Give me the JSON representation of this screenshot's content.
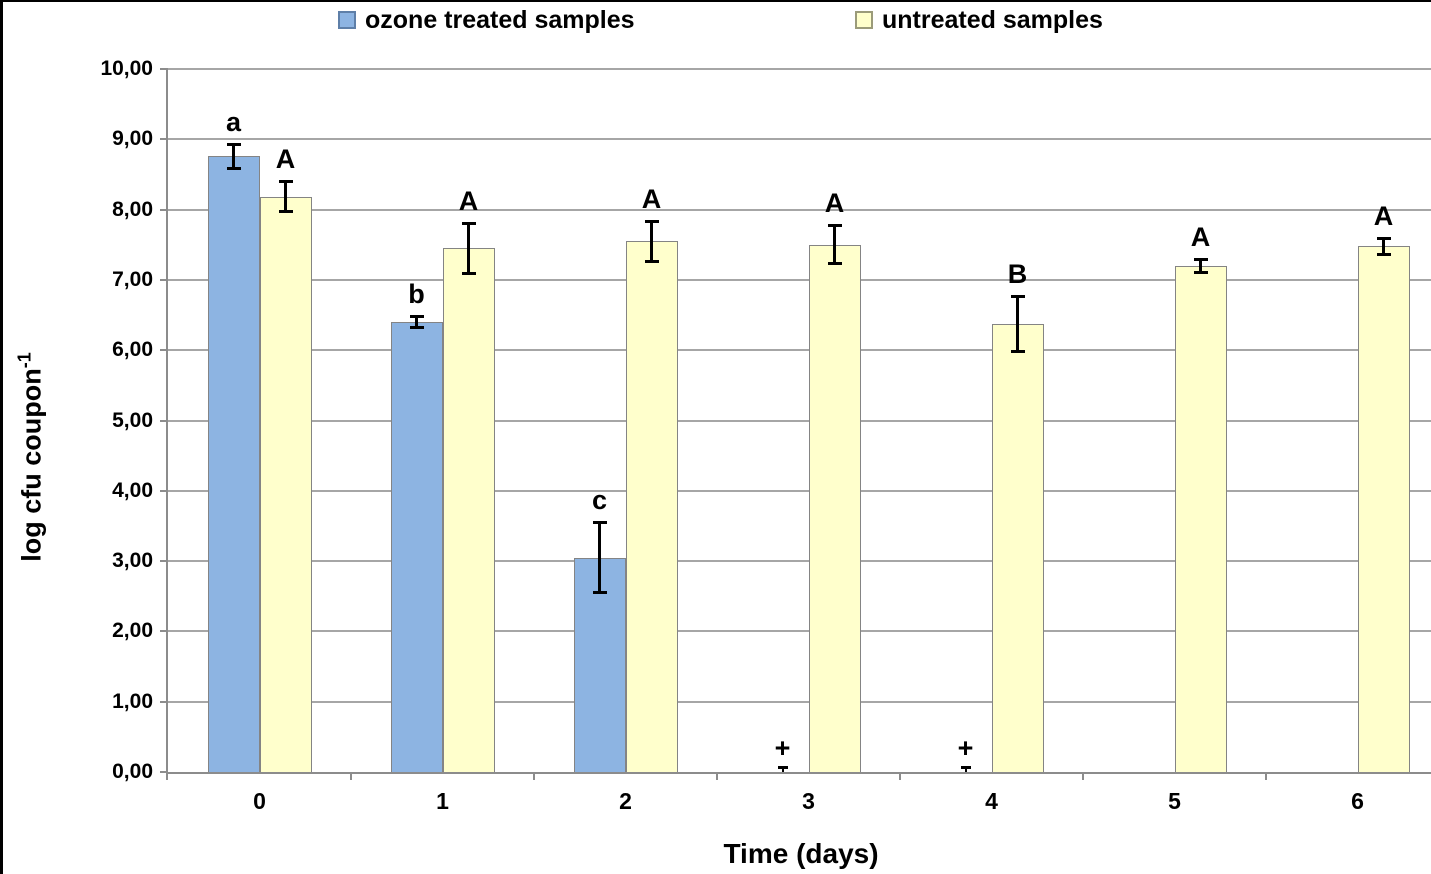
{
  "figure": {
    "background": "#FFFFFF",
    "frame_border_color": "#000000",
    "grid_color": "#A6A6A6",
    "axis_color": "#8C8C8C",
    "error_bar_color": "#000000",
    "text_color": "#000000"
  },
  "legend": {
    "position": "top",
    "items": [
      {
        "label": "ozone treated samples",
        "color": "#8DB4E2",
        "border": "#5E7FA8"
      },
      {
        "label": "untreated samples",
        "color": "#FFFFCC",
        "border": "#9B9B7A"
      }
    ]
  },
  "chart_data": {
    "type": "bar",
    "xlabel": "Time (days)",
    "ylabel": "log cfu coupon⁻¹",
    "ylabel_base": "log cfu coupon",
    "ylabel_sup": "-1",
    "categories": [
      "0",
      "1",
      "2",
      "3",
      "4",
      "5",
      "6"
    ],
    "ylim": [
      0,
      10
    ],
    "ytick_step": 1,
    "ytick_labels": [
      "0,00",
      "1,00",
      "2,00",
      "3,00",
      "4,00",
      "5,00",
      "6,00",
      "7,00",
      "8,00",
      "9,00",
      "10,00"
    ],
    "grid": true,
    "legend_position": "top",
    "series": [
      {
        "name": "ozone treated samples",
        "color": "#8DB4E2",
        "border": "#848484",
        "values": [
          8.76,
          6.4,
          3.05,
          null,
          null,
          null,
          null
        ],
        "errors": [
          0.18,
          0.08,
          0.5,
          null,
          null,
          null,
          null
        ],
        "labels": [
          "a",
          "b",
          "c",
          "+",
          "+",
          "",
          ""
        ],
        "below_detection": [
          false,
          false,
          false,
          true,
          true,
          false,
          false
        ]
      },
      {
        "name": "untreated samples",
        "color": "#FFFFCC",
        "border": "#848484",
        "values": [
          8.18,
          7.45,
          7.55,
          7.5,
          6.37,
          7.2,
          7.48
        ],
        "errors": [
          0.22,
          0.36,
          0.29,
          0.28,
          0.4,
          0.1,
          0.12
        ],
        "labels": [
          "A",
          "A",
          "A",
          "A",
          "B",
          "A",
          "A"
        ],
        "below_detection": [
          false,
          false,
          false,
          false,
          false,
          false,
          false
        ]
      }
    ]
  }
}
